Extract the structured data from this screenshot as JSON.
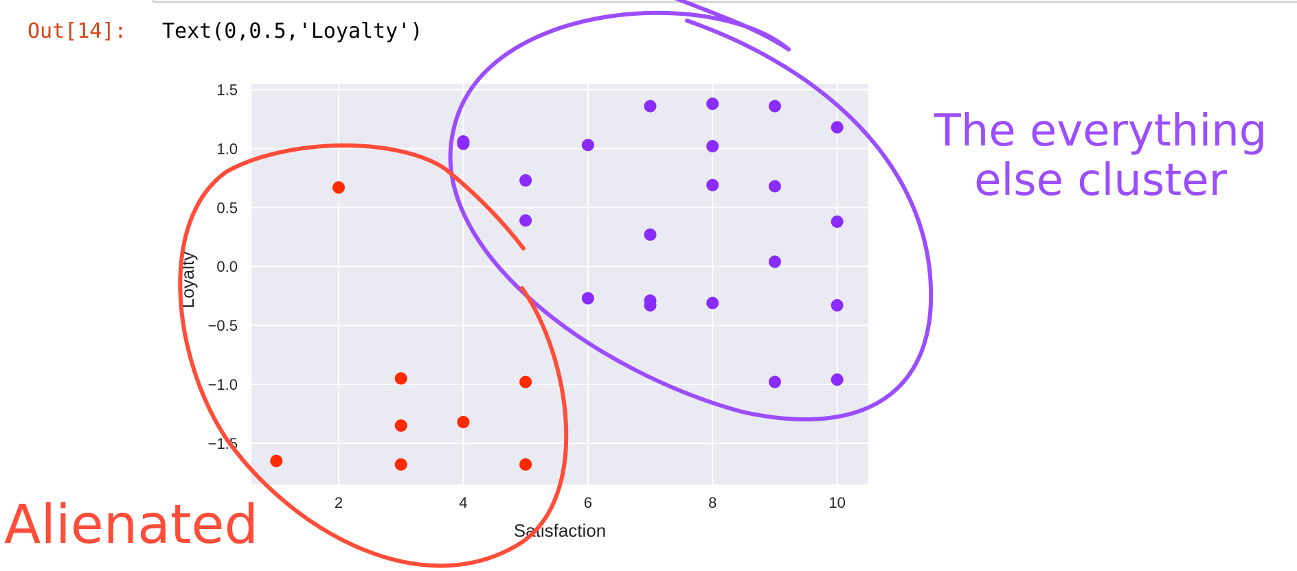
{
  "notebook": {
    "out_prompt": "Out[14]:",
    "out_text": "Text(0,0.5,'Loyalty')"
  },
  "annotations": {
    "purple_line1": "The everything",
    "purple_line2": "else cluster",
    "red": "Alienated",
    "purple_color": "#9b4dff",
    "red_color": "#ff4d3a"
  },
  "chart_data": {
    "type": "scatter",
    "title": "",
    "xlabel": "Satisfaction",
    "ylabel": "Loyalty",
    "xlim": [
      0.6,
      10.5
    ],
    "ylim": [
      -1.85,
      1.55
    ],
    "xticks": [
      2,
      4,
      6,
      8,
      10
    ],
    "yticks": [
      1.5,
      1.0,
      0.5,
      0.0,
      -0.5,
      -1.0,
      -1.5
    ],
    "ytick_labels": [
      "1.5",
      "1.0",
      "0.5",
      "0.0",
      "−0.5",
      "−1.0",
      "−1.5"
    ],
    "grid": true,
    "background": "#eaeaf2",
    "series": [
      {
        "color": "#ff2a00",
        "points": [
          [
            2,
            0.67
          ],
          [
            3,
            -0.95
          ],
          [
            3,
            -1.35
          ],
          [
            3,
            -1.68
          ],
          [
            4,
            -1.32
          ],
          [
            5,
            -0.98
          ],
          [
            5,
            -1.68
          ],
          [
            1,
            -1.65
          ]
        ]
      },
      {
        "color": "#8a2bff",
        "points": [
          [
            4,
            1.04
          ],
          [
            4,
            1.06
          ],
          [
            5,
            0.73
          ],
          [
            5,
            0.39
          ],
          [
            6,
            1.03
          ],
          [
            6,
            -0.27
          ],
          [
            7,
            1.36
          ],
          [
            7,
            0.27
          ],
          [
            7,
            -0.29
          ],
          [
            7,
            -0.33
          ],
          [
            8,
            1.38
          ],
          [
            8,
            1.02
          ],
          [
            8,
            0.69
          ],
          [
            8,
            -0.31
          ],
          [
            9,
            1.36
          ],
          [
            9,
            0.68
          ],
          [
            9,
            0.04
          ],
          [
            9,
            -0.98
          ],
          [
            10,
            1.18
          ],
          [
            10,
            0.38
          ],
          [
            10,
            -0.33
          ],
          [
            10,
            -0.96
          ]
        ]
      }
    ]
  }
}
